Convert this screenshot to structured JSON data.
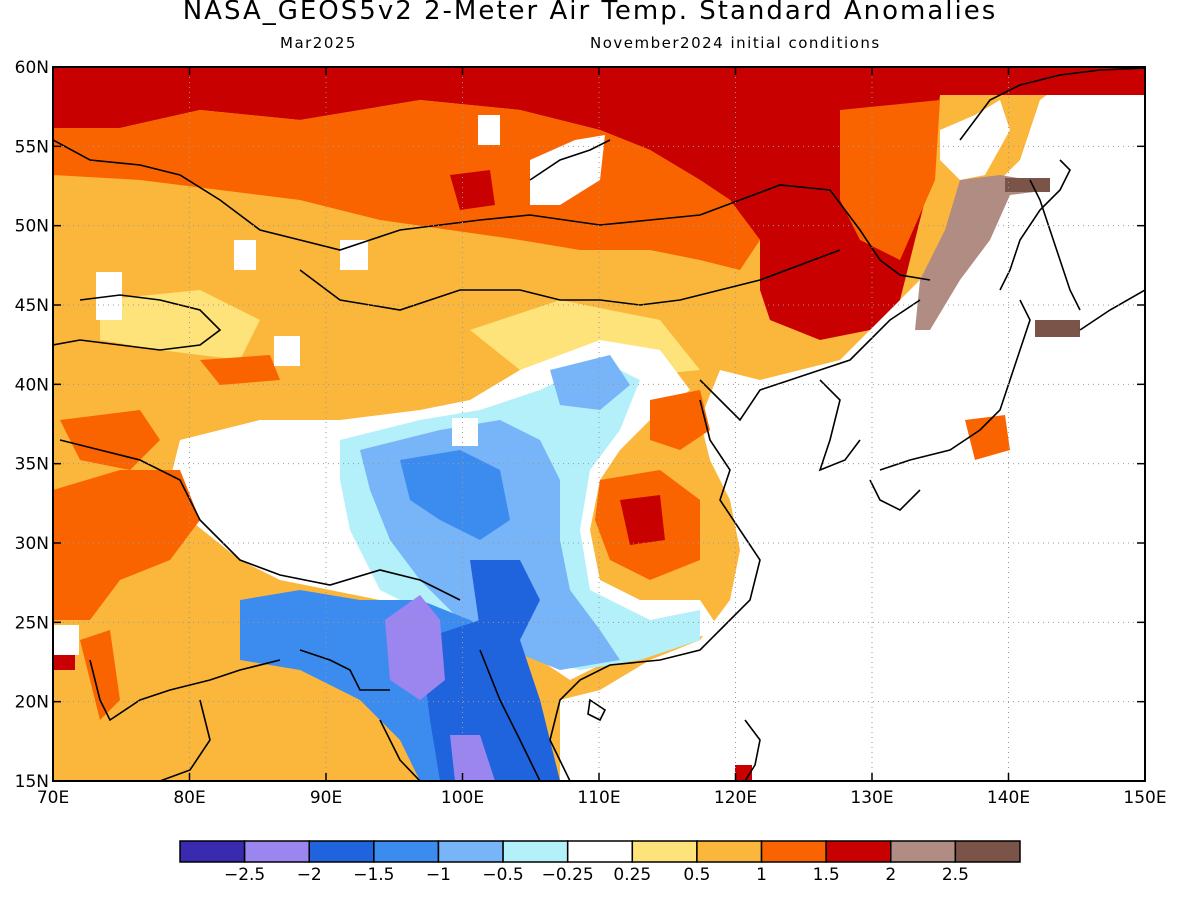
{
  "title": "NASA_GEOS5v2 2-Meter Air Temp. Standard Anomalies",
  "valid_month": "Mar2025",
  "init_conditions": "November2024 initial conditions",
  "map": {
    "lon_ticks": [
      "70E",
      "80E",
      "90E",
      "100E",
      "110E",
      "120E",
      "130E",
      "140E",
      "150E"
    ],
    "lat_ticks": [
      "15N",
      "20N",
      "25N",
      "30N",
      "35N",
      "40N",
      "45N",
      "50N",
      "55N",
      "60N"
    ],
    "lon_range": [
      70,
      150
    ],
    "lat_range": [
      15,
      60
    ],
    "gridlines": "dotted"
  },
  "colorbar": {
    "labels": [
      "-2.5",
      "-2",
      "-1.5",
      "-1",
      "-0.5",
      "-0.25",
      "0.25",
      "0.5",
      "1",
      "1.5",
      "2",
      "2.5"
    ],
    "colors": [
      "#3a2ab0",
      "#9b86f0",
      "#1f64dc",
      "#3c8cf0",
      "#78b4f8",
      "#b4f0fa",
      "#ffffff",
      "#fde37a",
      "#fbb63c",
      "#fa6400",
      "#c80000",
      "#b08c82",
      "#7a5448"
    ]
  }
}
